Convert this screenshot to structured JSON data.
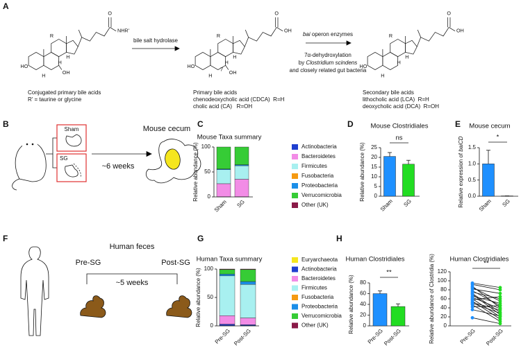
{
  "panel_labels": [
    "A",
    "B",
    "C",
    "D",
    "E",
    "F",
    "G",
    "H"
  ],
  "panel_a": {
    "molecules": [
      {
        "atoms": [
          "HO",
          "H",
          "H",
          "H",
          "OH",
          "R",
          "NHR'",
          "O"
        ],
        "caption": [
          "Conjugated primary bile acids",
          "R' = taurine or glycine"
        ]
      },
      {
        "atoms": [
          "HO",
          "H",
          "H",
          "H",
          "7",
          "OH",
          "R",
          "OH",
          "O"
        ],
        "caption": [
          "Primary bile acids",
          "chenodeoxycholic acid (CDCA)  R=H",
          "cholic acid (CA)   R=OH"
        ]
      },
      {
        "atoms": [
          "HO",
          "H",
          "H",
          "H",
          "R",
          "OH",
          "O"
        ],
        "caption": [
          "Secondary bile acids",
          "lithocholic acid (LCA)  R=H",
          "deoxycholic acid (DCA)  R=OH"
        ]
      }
    ],
    "step1": "bile salt hydrolase",
    "step2": {
      "enzyme": "bai",
      "enzyme_rest": " operon enzymes",
      "reaction": "7α-dehydroxylation",
      "by": "by ",
      "organism": "Clostridium scindens",
      "others": "and closely related gut bacteria"
    }
  },
  "panel_b": {
    "sham": "Sham",
    "sg": "SG",
    "duration": "~6 weeks",
    "title": "Mouse cecum"
  },
  "panel_f": {
    "title": "Human feces",
    "pre": "Pre-SG",
    "post": "Post-SG",
    "duration": "~5 weeks"
  },
  "chart_data": [
    {
      "type": "stacked-bar",
      "title": "Mouse Taxa summary",
      "y_label": "Relative abundance (%)",
      "categories": [
        "Sham",
        "SG"
      ],
      "ylim": [
        0,
        100
      ],
      "yticks": [
        0,
        50,
        100
      ],
      "series": [
        {
          "name": "Actinobacteria",
          "color": "#1f3fcf",
          "values": [
            0.5,
            0.5
          ]
        },
        {
          "name": "Bacteroidetes",
          "color": "#f28ce6",
          "values": [
            26,
            35
          ]
        },
        {
          "name": "Firmicutes",
          "color": "#a8f0f0",
          "values": [
            28,
            27
          ]
        },
        {
          "name": "Fusobacteria",
          "color": "#f59a12",
          "values": [
            0,
            0
          ]
        },
        {
          "name": "Proteobacteria",
          "color": "#1b8ee8",
          "values": [
            1.5,
            2
          ]
        },
        {
          "name": "Verrucomicrobia",
          "color": "#36cc36",
          "values": [
            44,
            35.5
          ]
        },
        {
          "name": "Other (UK)",
          "color": "#8a1a48",
          "values": [
            0,
            0
          ]
        }
      ]
    },
    {
      "type": "bar",
      "title": "Mouse Clostridiales",
      "y_label": "Relative abundance (%)",
      "categories": [
        "Sham",
        "SG"
      ],
      "values": [
        20.5,
        16.5
      ],
      "errors": [
        2,
        2
      ],
      "colors": [
        "#1e90ff",
        "#22dd22"
      ],
      "ylim": [
        0,
        25
      ],
      "yticks": [
        0,
        5,
        10,
        15,
        20,
        25
      ],
      "annotation": "ns"
    },
    {
      "type": "bar",
      "title": "Mouse cecum",
      "y_label": "Relative expression of ",
      "y_label_italic": "baiCD",
      "categories": [
        "Sham",
        "SG"
      ],
      "values": [
        1.0,
        0.01
      ],
      "errors": [
        0.42,
        0
      ],
      "colors": [
        "#1e90ff",
        "#22dd22"
      ],
      "ylim": [
        0,
        1.5
      ],
      "yticks": [
        {
          "value": 0,
          "label": "0.0"
        },
        {
          "value": 0.5,
          "label": "0.5"
        },
        {
          "value": 1,
          "label": "1.0"
        },
        {
          "value": 1.5,
          "label": "1.5"
        }
      ],
      "annotation": "*"
    },
    {
      "type": "stacked-bar",
      "title": "Human Taxa summary",
      "y_label": "Relative abundance (%)",
      "categories": [
        "Pre-SG",
        "Post-SG"
      ],
      "ylim": [
        0,
        100
      ],
      "yticks": [
        0,
        50,
        100
      ],
      "series": [
        {
          "name": "Euryarchaeota",
          "color": "#f5e61e",
          "values": [
            0.5,
            0.5
          ]
        },
        {
          "name": "Actinobacteria",
          "color": "#1f3fcf",
          "values": [
            2.5,
            1.5
          ]
        },
        {
          "name": "Bacteroidetes",
          "color": "#f28ce6",
          "values": [
            15,
            12
          ]
        },
        {
          "name": "Firmicutes",
          "color": "#a8f0f0",
          "values": [
            70,
            59
          ]
        },
        {
          "name": "Fusobacteria",
          "color": "#f59a12",
          "values": [
            0,
            0
          ]
        },
        {
          "name": "Proteobacteria",
          "color": "#1b8ee8",
          "values": [
            3,
            5
          ]
        },
        {
          "name": "Verrucomicrobia",
          "color": "#36cc36",
          "values": [
            8,
            21
          ]
        },
        {
          "name": "Other (UK)",
          "color": "#8a1a48",
          "values": [
            1,
            1
          ]
        }
      ]
    },
    {
      "type": "bar",
      "title": "Human Clostridiales",
      "y_label": "Relative abundance (%)",
      "categories": [
        "Pre-SG",
        "Post-SG"
      ],
      "values": [
        60,
        36
      ],
      "errors": [
        5,
        5
      ],
      "colors": [
        "#1e90ff",
        "#22dd22"
      ],
      "ylim": [
        0,
        80
      ],
      "yticks": [
        0,
        20,
        40,
        60,
        80
      ],
      "annotation": "**"
    },
    {
      "type": "dot-plot",
      "title": "Human Clostridiales",
      "y_label": "Relative abundance of Clostridia (%)",
      "categories": [
        "Pre-SG",
        "Post-SG"
      ],
      "colors": [
        "#1e90ff",
        "#22dd22"
      ],
      "values": [
        [
          95,
          85
        ],
        [
          92,
          80
        ],
        [
          88,
          40
        ],
        [
          85,
          55
        ],
        [
          82,
          72
        ],
        [
          78,
          45
        ],
        [
          75,
          60
        ],
        [
          72,
          30
        ],
        [
          70,
          25
        ],
        [
          66,
          50
        ],
        [
          63,
          38
        ],
        [
          60,
          20
        ],
        [
          58,
          65
        ],
        [
          55,
          15
        ],
        [
          52,
          35
        ],
        [
          50,
          28
        ],
        [
          47,
          10
        ],
        [
          42,
          45
        ],
        [
          36,
          22
        ],
        [
          18,
          5
        ]
      ],
      "ylim": [
        0,
        120
      ],
      "yticks": [
        0,
        20,
        40,
        60,
        80,
        100,
        120
      ],
      "annotation": "**"
    }
  ]
}
